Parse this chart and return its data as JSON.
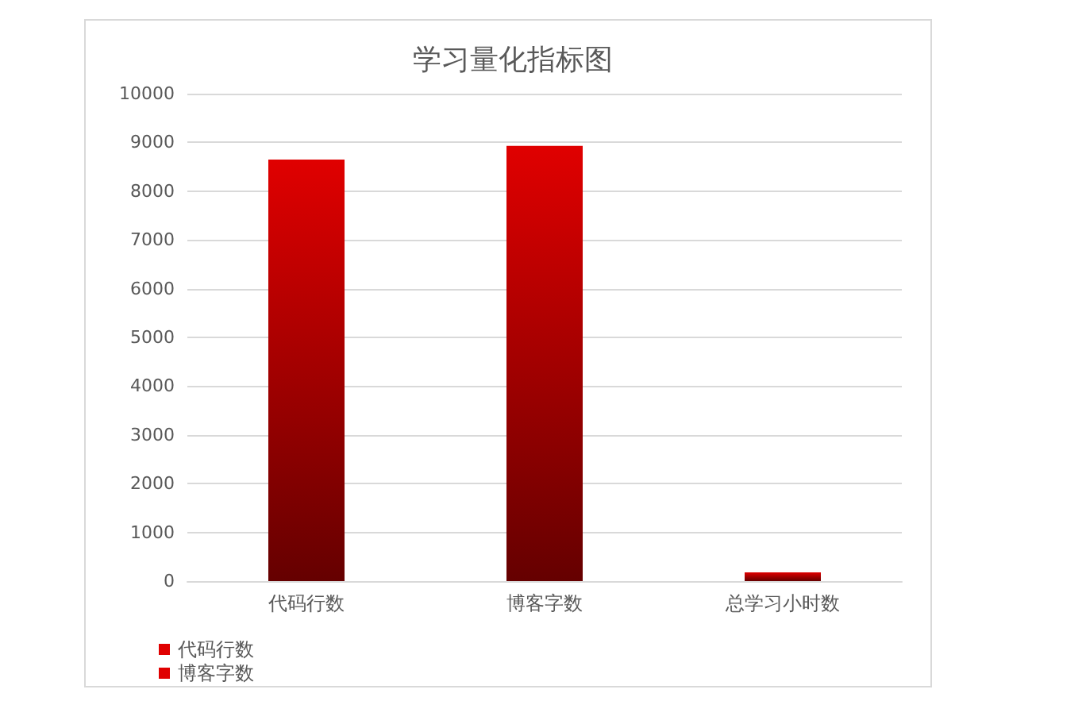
{
  "chart_data": {
    "type": "bar",
    "title": "学习量化指标图",
    "categories": [
      "代码行数",
      "博客字数",
      "总学习小时数"
    ],
    "stacked": true,
    "series": [
      {
        "name": "代码行数",
        "color": "#e00000",
        "values": [
          8650,
          null,
          null
        ]
      },
      {
        "name": "博客字数",
        "color": "#e00000",
        "values": [
          null,
          8930,
          null
        ]
      },
      {
        "color": "#e00000",
        "values": [
          null,
          null,
          180
        ]
      }
    ],
    "ylim": [
      0,
      10000
    ],
    "yticks": [
      0,
      1000,
      2000,
      3000,
      4000,
      5000,
      6000,
      7000,
      8000,
      9000,
      10000
    ],
    "grid": "y",
    "legend": "bottom left"
  }
}
